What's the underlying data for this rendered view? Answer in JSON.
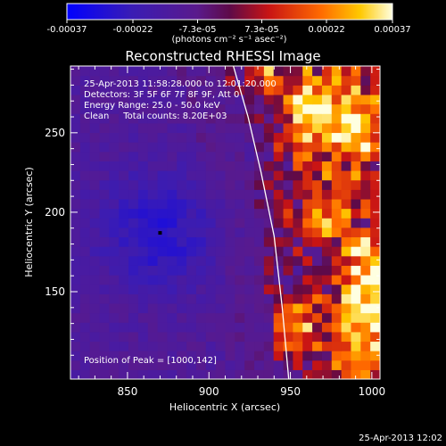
{
  "chart_data": {
    "type": "heatmap",
    "title": "Reconstructed RHESSI Image",
    "xlabel": "Heliocentric X (arcsec)",
    "ylabel": "Heliocentric Y (arcsec)",
    "xlim": [
      815,
      1005
    ],
    "ylim": [
      95,
      292
    ],
    "xticks": [
      850,
      900,
      950,
      1000
    ],
    "yticks": [
      150,
      200,
      250
    ],
    "colorbar": {
      "min": -0.00037,
      "max": 0.00037,
      "tick_labels": [
        "-0.00037",
        "-0.00022",
        "-7.3e-05",
        "7.3e-05",
        "0.00022",
        "0.00037"
      ],
      "tick_values": [
        -0.00037,
        -0.00022,
        -7.3e-05,
        7.3e-05,
        0.00022,
        0.00037
      ],
      "unit_label": "(photons cm⁻² s⁻¹ asec⁻²)"
    },
    "info": [
      "25-Apr-2013 11:58:28.000 to 12:01:20.000",
      "Detectors: 3F 5F 6F 7F 8F 9F, Att 0",
      "Energy Range: 25.0 - 50.0 keV",
      "Clean     Total counts: 8.20E+03"
    ],
    "peak_label": "Position of Peak = [1000,142]",
    "peak": [
      1000,
      142
    ],
    "min_marker": [
      870,
      187
    ],
    "limb_curve": {
      "x": [
        915,
        924,
        932,
        940,
        945,
        949
      ],
      "y": [
        292,
        260,
        225,
        185,
        140,
        95
      ]
    },
    "image_grid": {
      "cols": 32,
      "rows": 33,
      "x_range": [
        815,
        1005
      ],
      "y_range": [
        95,
        292
      ],
      "pattern": "negative (blue/purple) on disk left of limb, positive (red/orange/yellow) off-limb with bright blobs upper-right and lower-right"
    },
    "grid": false
  },
  "footer": {
    "timestamp": "25-Apr-2013 12:02"
  }
}
